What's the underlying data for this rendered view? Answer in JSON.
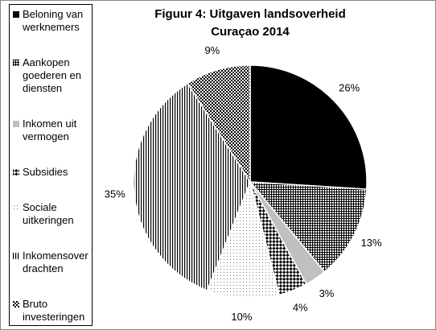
{
  "chart_data": {
    "type": "pie",
    "title": "Figuur 4: Uitgaven landsoverheid Curaçao 2014",
    "categories": [
      "Beloning van werknemers",
      "Aankopen goederen en diensten",
      "Inkomen uit vermogen",
      "Subsidies",
      "Sociale uitkeringen",
      "Inkomensoverdrachten",
      "Bruto investeringen"
    ],
    "values": [
      26,
      13,
      3,
      4,
      10,
      35,
      9
    ],
    "value_labels": [
      "26%",
      "13%",
      "3%",
      "4%",
      "10%",
      "35%",
      "9%"
    ],
    "legend": "left"
  }
}
